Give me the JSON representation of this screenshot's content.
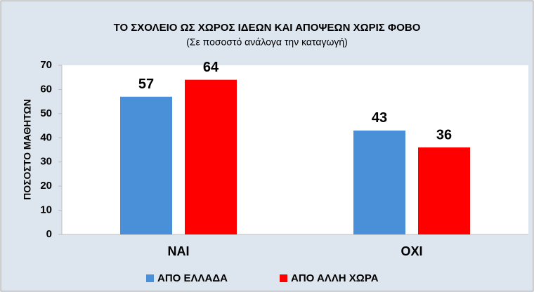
{
  "chart_data": {
    "type": "bar",
    "title": "ΤΟ ΣΧΟΛΕΙΟ ΩΣ ΧΩΡΟΣ ΙΔΕΩΝ ΚΑΙ ΑΠΟΨΕΩΝ ΧΩΡΙΣ ΦΟΒΟ",
    "subtitle": "(Σε ποσοστό ανάλογα την καταγωγή)",
    "y_label": "ΠΟΣΟΣΤΟ ΜΑΘΗΤΩΝ",
    "categories": [
      "ΝΑΙ",
      "ΟΧΙ"
    ],
    "series": [
      {
        "name": "ΑΠΟ ΕΛΛΑΔΑ",
        "color": "#4a90d9",
        "values": [
          57,
          43
        ]
      },
      {
        "name": "ΑΠΟ ΑΛΛΗ ΧΩΡΑ",
        "color": "#ff0000",
        "values": [
          64,
          36
        ]
      }
    ],
    "ylim": [
      0,
      70
    ],
    "yticks": [
      0,
      10,
      20,
      30,
      40,
      50,
      60,
      70
    ],
    "legend": "bottom"
  }
}
